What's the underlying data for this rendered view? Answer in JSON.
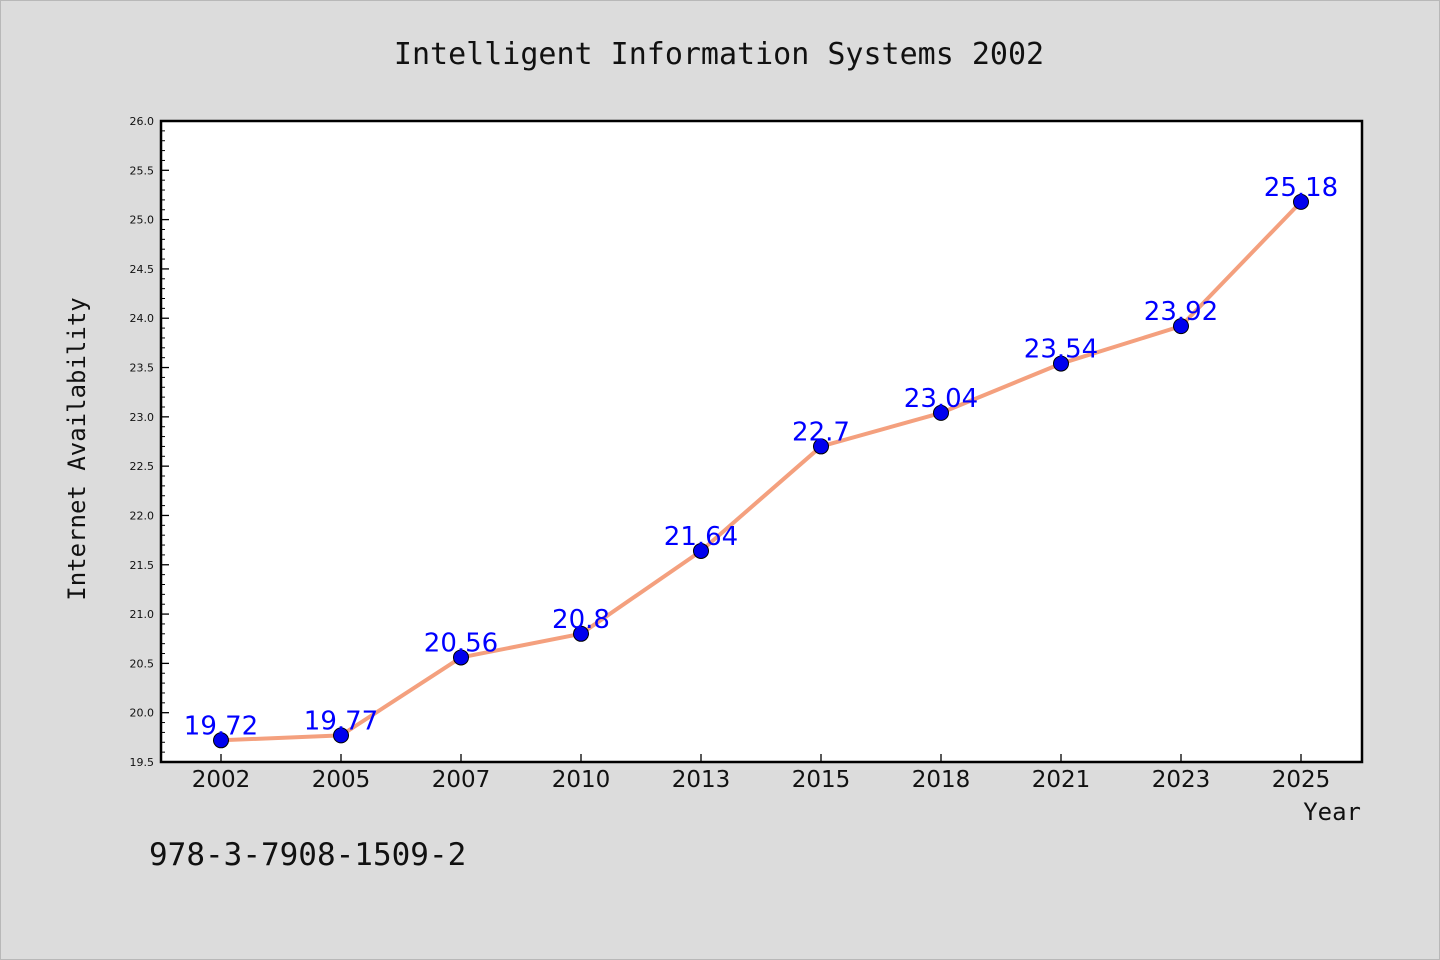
{
  "chart_data": {
    "type": "line",
    "title": "Intelligent Information Systems 2002",
    "xlabel": "Year",
    "ylabel": "Internet Availability",
    "categories": [
      "2002",
      "2005",
      "2007",
      "2010",
      "2013",
      "2015",
      "2018",
      "2021",
      "2023",
      "2025"
    ],
    "series": [
      {
        "values": [
          19.72,
          19.77,
          20.56,
          20.8,
          21.64,
          22.7,
          23.04,
          23.54,
          23.92,
          25.18
        ],
        "labels": [
          "19.72",
          "19.77",
          "20.56",
          "20.8",
          "21.64",
          "22.7",
          "23.04",
          "23.54",
          "23.92",
          "25.18"
        ],
        "line_color": "#f4a07e",
        "marker_color": "#0000ee",
        "label_color": "#0000ff"
      }
    ],
    "ylim": [
      19.5,
      26.0
    ],
    "yticks": [
      "19.5",
      "20.0",
      "20.5",
      "21.0",
      "21.5",
      "22.0",
      "22.5",
      "23.0",
      "23.5",
      "24.0",
      "24.5",
      "25.0",
      "25.5",
      "26.0"
    ],
    "grid": false,
    "legend": "none"
  },
  "footer": {
    "text": "978-3-7908-1509-2"
  },
  "colors": {
    "background": "#dcdcdc",
    "plot_background": "#ffffff",
    "axis": "#000000"
  }
}
